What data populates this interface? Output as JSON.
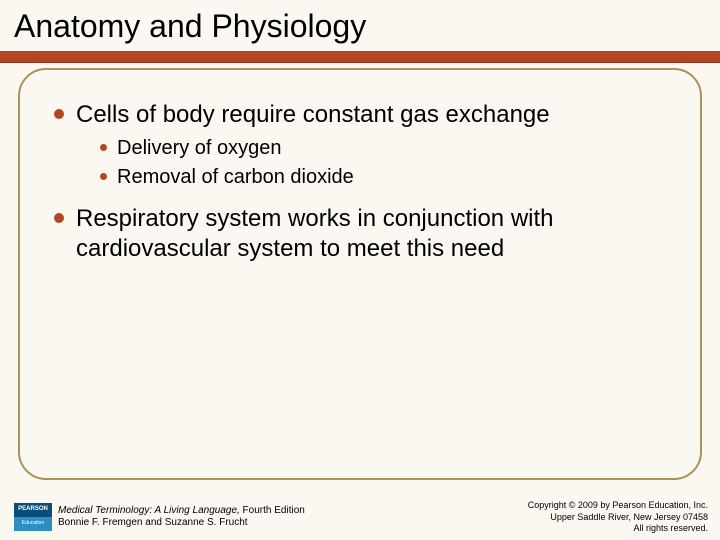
{
  "colors": {
    "accent": "#b5451f",
    "border": "#aa915a",
    "background": "#faf8f0",
    "text": "#000000",
    "logo_dark": "#0a4d7a",
    "logo_light": "#2d8fbf"
  },
  "title": "Anatomy and Physiology",
  "bullets": [
    {
      "text": "Cells of body require constant gas exchange",
      "children": [
        {
          "text": "Delivery of oxygen"
        },
        {
          "text": "Removal of carbon dioxide"
        }
      ]
    },
    {
      "text": "Respiratory system works in conjunction with cardiovascular system to meet this need",
      "children": []
    }
  ],
  "footer": {
    "logo_top": "PEARSON",
    "logo_bottom": "Education",
    "book_title": "Medical Terminology: A Living Language,",
    "book_edition": " Fourth Edition",
    "authors": "Bonnie F. Fremgen and Suzanne S. Frucht",
    "copyright_line1": "Copyright © 2009 by Pearson Education, Inc.",
    "copyright_line2": "Upper Saddle River, New Jersey 07458",
    "copyright_line3": "All rights reserved."
  }
}
